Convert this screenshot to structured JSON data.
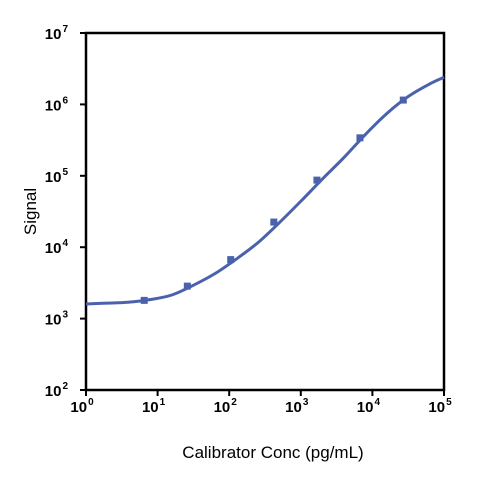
{
  "chart_data": {
    "type": "line",
    "title": "",
    "xlabel": "Calibrator Conc (pg/mL)",
    "ylabel": "Signal",
    "x_scale": "log",
    "y_scale": "log",
    "xlim": [
      1,
      100000
    ],
    "ylim": [
      100,
      10000000
    ],
    "grid": false,
    "legend": "none",
    "x_ticks": [
      {
        "base": "10",
        "exp": "0",
        "value": 1
      },
      {
        "base": "10",
        "exp": "1",
        "value": 10
      },
      {
        "base": "10",
        "exp": "2",
        "value": 100
      },
      {
        "base": "10",
        "exp": "3",
        "value": 1000
      },
      {
        "base": "10",
        "exp": "4",
        "value": 10000
      },
      {
        "base": "10",
        "exp": "5",
        "value": 100000
      }
    ],
    "y_ticks": [
      {
        "base": "10",
        "exp": "2",
        "value": 100
      },
      {
        "base": "10",
        "exp": "3",
        "value": 1000
      },
      {
        "base": "10",
        "exp": "4",
        "value": 10000
      },
      {
        "base": "10",
        "exp": "5",
        "value": 100000
      },
      {
        "base": "10",
        "exp": "6",
        "value": 1000000
      },
      {
        "base": "10",
        "exp": "7",
        "value": 10000000
      }
    ],
    "series": [
      {
        "color": "#4a62ad",
        "marker": "square",
        "points": [
          {
            "x": 6.5,
            "y": 1800
          },
          {
            "x": 26,
            "y": 2850
          },
          {
            "x": 105,
            "y": 6700
          },
          {
            "x": 420,
            "y": 22500
          },
          {
            "x": 1680,
            "y": 87000
          },
          {
            "x": 6700,
            "y": 340000
          },
          {
            "x": 27000,
            "y": 1150000
          }
        ],
        "fit_curve": {
          "x": [
            1,
            2,
            4,
            8,
            16,
            32,
            64,
            125,
            250,
            500,
            1000,
            2000,
            4000,
            8000,
            16000,
            32000,
            64000,
            100000
          ],
          "y": [
            1600,
            1650,
            1700,
            1850,
            2150,
            2950,
            4300,
            6800,
            11500,
            22000,
            44000,
            90000,
            180000,
            380000,
            750000,
            1300000,
            1950000,
            2400000
          ]
        }
      }
    ]
  }
}
